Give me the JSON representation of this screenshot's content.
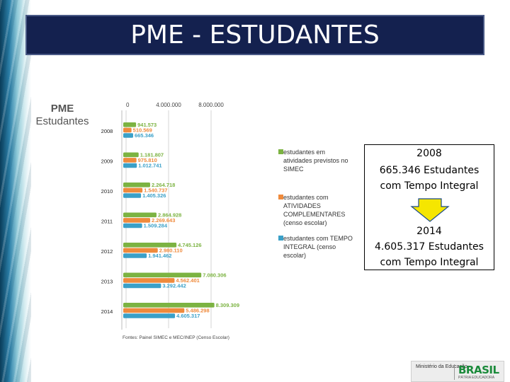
{
  "title": "PME - ESTUDANTES",
  "chart_data": {
    "type": "bar",
    "orientation": "horizontal",
    "title": "PME",
    "subtitle": "Estudantes",
    "categories": [
      "2008",
      "2009",
      "2010",
      "2011",
      "2012",
      "2013",
      "2014"
    ],
    "x_ticks": [
      "0",
      "4.000.000",
      "8.000.000"
    ],
    "xlim": [
      0,
      9000000
    ],
    "grid": true,
    "legend_position": "right",
    "series": [
      {
        "name": "estudantes em atividades previstos no SIMEC",
        "color": "#7cb342",
        "values": [
          941573,
          1181807,
          2264718,
          2864928,
          4745126,
          7080306,
          8309309
        ],
        "labels": [
          "941.573",
          "1.181.807",
          "2.264.718",
          "2.864.928",
          "4.745.126",
          "7.080.306",
          "8.309.309"
        ]
      },
      {
        "name": "estudantes com ATIVIDADES COMPLEMENTARES (censo escolar)",
        "color": "#ef8a3c",
        "values": [
          510569,
          975810,
          1540737,
          2269643,
          2980110,
          4562401,
          5486298
        ],
        "labels": [
          "510.569",
          "975.810",
          "1.540.737",
          "2.269.643",
          "2.980.110",
          "4.562.401",
          "5.486.298"
        ]
      },
      {
        "name": "estudantes com TEMPO INTEGRAL (censo escolar)",
        "color": "#3aa0c8",
        "values": [
          665346,
          1012741,
          1405326,
          1509284,
          1941462,
          3292442,
          4605317
        ],
        "labels": [
          "665.346",
          "1.012.741",
          "1.405.326",
          "1.509.284",
          "1.941.462",
          "3.292.442",
          "4.605.317"
        ]
      }
    ],
    "legend_lines": [
      [
        "estudantes em",
        "atividades previstos no",
        "SIMEC"
      ],
      [
        "estudantes com",
        "ATIVIDADES",
        "COMPLEMENTARES",
        "(censo escolar)"
      ],
      [
        "estudantes com TEMPO",
        "INTEGRAL  (censo",
        "escolar)"
      ]
    ],
    "source": "Fontes: Painel SIMEC e MEC/INEP (Censo Escolar)"
  },
  "note": {
    "line1": "2008",
    "line2": "665.346 Estudantes",
    "line3": "com Tempo Integral",
    "line4": "2014",
    "line5": "4.605.317 Estudantes",
    "line6": "com Tempo Integral",
    "arrow_color": "#f5e600"
  },
  "logo": {
    "ministry": "Ministério da Educação",
    "brand": "BRASIL",
    "tagline": "PÁTRIA EDUCADORA"
  }
}
